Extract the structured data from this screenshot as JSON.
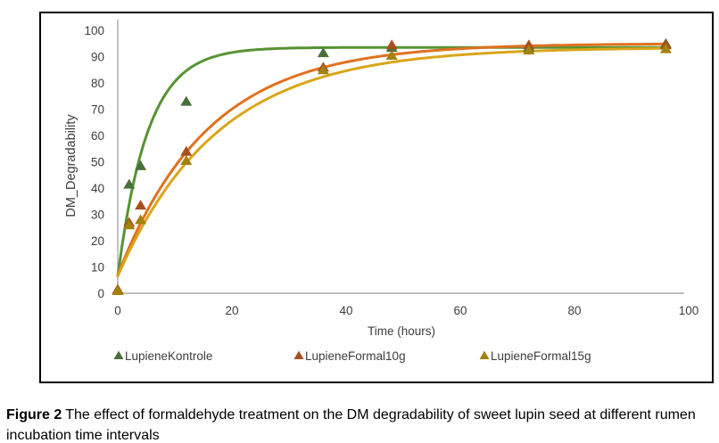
{
  "figure": {
    "caption_label": "Figure 2",
    "caption_text": "The effect of formaldehyde treatment on the DM degradability of sweet lupin seed at different rumen incubation time intervals"
  },
  "chart_data": {
    "type": "scatter",
    "title": "",
    "xlabel": "Time (hours)",
    "ylabel": "DM_Degradability",
    "xlim": [
      0,
      100
    ],
    "ylim": [
      0,
      100
    ],
    "x_ticks": [
      0,
      20,
      40,
      60,
      80,
      100
    ],
    "y_ticks": [
      0,
      10,
      20,
      30,
      40,
      50,
      60,
      70,
      80,
      90,
      100
    ],
    "grid": "off",
    "legend_position": "bottom",
    "axis_color": "#ababab",
    "label_color": "#3d3d3d",
    "series": [
      {
        "name": "LupieneKontrole",
        "marker": "triangle-up",
        "marker_color": "#48703a",
        "line_color": "#569334",
        "points_x": [
          0,
          2,
          4,
          12,
          36,
          48,
          72,
          96
        ],
        "points_y": [
          1.5,
          41.5,
          48.5,
          73,
          91.5,
          93.5,
          93.5,
          95
        ],
        "fitted_curve": {
          "model": "p = a + b*(1 - exp(-c*t))",
          "a": 6.5,
          "b": 87,
          "c": 0.19,
          "t_max": 96
        }
      },
      {
        "name": "LupieneFormal10g",
        "marker": "triangle-up",
        "marker_color": "#a94f1f",
        "line_color": "#e0711f",
        "points_x": [
          0,
          2,
          4,
          12,
          36,
          48,
          72,
          96
        ],
        "points_y": [
          1.5,
          27,
          33.5,
          54,
          86,
          94.5,
          94.5,
          94.5
        ],
        "fitted_curve": {
          "model": "p = a + b*(1 - exp(-c*t))",
          "a": 7,
          "b": 88,
          "c": 0.063,
          "t_max": 96
        }
      },
      {
        "name": "LupieneFormal15g",
        "marker": "triangle-up",
        "marker_color": "#a3830e",
        "line_color": "#d9a51a",
        "points_x": [
          0,
          2,
          4,
          12,
          36,
          48,
          72,
          96
        ],
        "points_y": [
          1,
          26,
          28,
          50.5,
          85,
          90.5,
          92.5,
          93
        ],
        "fitted_curve": {
          "model": "p = a + b*(1 - exp(-c*t))",
          "a": 6.5,
          "b": 87,
          "c": 0.057,
          "t_max": 96
        }
      }
    ]
  }
}
